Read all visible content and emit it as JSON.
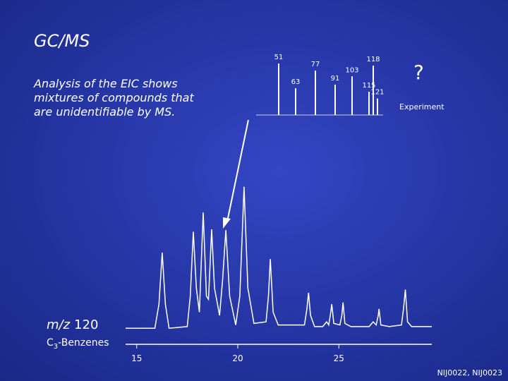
{
  "slide": {
    "title": "GC/MS",
    "body_lines": [
      "Analysis of the EIC shows",
      "mixtures of compounds that",
      "are unidentifiable by MS."
    ],
    "question": "?",
    "experiment_label": "Experiment",
    "trace_label": [
      "m/z",
      "120"
    ],
    "compound_label": [
      "C",
      "3",
      "-Benzenes"
    ],
    "footer": "NIJ0022, NIJ0023"
  },
  "chart_data": [
    {
      "type": "line",
      "color": "#ffffff",
      "xlim": [
        14.45,
        29.6
      ],
      "ylim": [
        0,
        100
      ],
      "xticks": [
        15,
        20,
        25
      ],
      "x": [
        14.45,
        15.9,
        16.1,
        16.26,
        16.42,
        16.6,
        17.5,
        17.65,
        17.8,
        17.95,
        18.1,
        18.29,
        18.45,
        18.55,
        18.71,
        18.85,
        19.1,
        19.25,
        19.41,
        19.6,
        19.9,
        20.1,
        20.31,
        20.5,
        20.8,
        21.4,
        21.52,
        21.61,
        21.75,
        22.0,
        23.3,
        23.42,
        23.5,
        23.6,
        23.8,
        24.2,
        24.4,
        24.5,
        24.6,
        24.65,
        24.75,
        25.05,
        25.15,
        25.21,
        25.3,
        25.6,
        26.5,
        26.7,
        26.85,
        26.95,
        26.99,
        27.08,
        27.5,
        28.1,
        28.2,
        28.29,
        28.4,
        28.6,
        29.6
      ],
      "values": [
        10,
        10,
        25,
        57,
        25,
        10,
        11,
        30,
        70,
        35,
        20,
        82,
        30,
        28,
        71.5,
        35,
        18,
        40,
        71,
        30,
        12,
        30,
        98,
        35,
        13,
        14,
        30,
        53,
        20,
        12,
        12,
        22,
        32,
        18,
        11,
        11,
        14,
        12,
        20,
        25,
        13,
        12,
        18,
        26,
        13,
        11,
        11,
        14,
        12,
        18,
        22,
        12,
        11,
        12,
        22,
        34,
        14,
        11,
        11
      ]
    },
    {
      "type": "bar",
      "color": "#ffffff",
      "xlim": [
        35,
        125
      ],
      "ylim": [
        0,
        100
      ],
      "x": [
        51,
        63,
        77,
        91,
        103,
        115,
        118,
        121
      ],
      "values": [
        100,
        52,
        86,
        59,
        75,
        45,
        96,
        32
      ]
    }
  ]
}
